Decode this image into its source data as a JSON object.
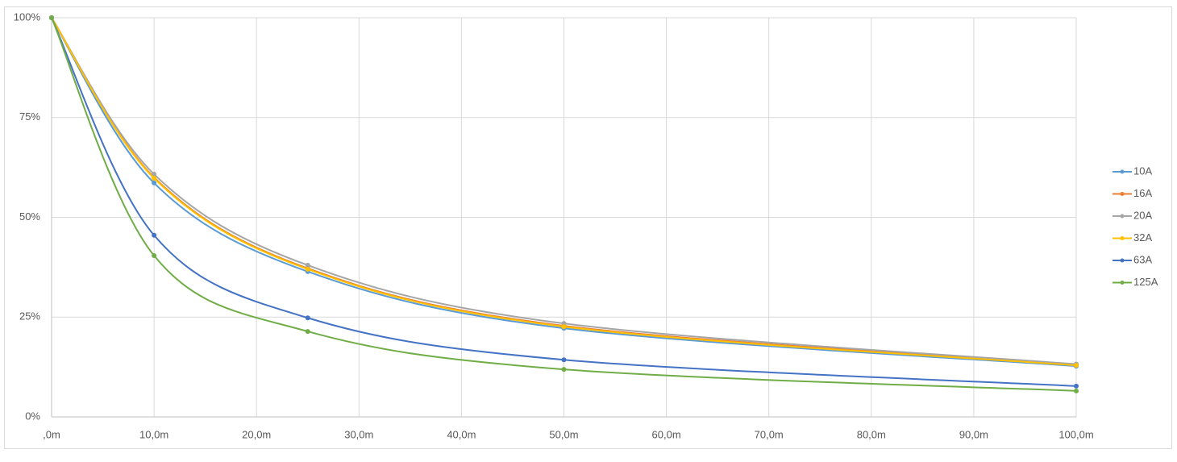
{
  "chart_data": {
    "type": "line",
    "smooth": true,
    "grid": true,
    "legend": "right",
    "x": [
      0,
      10,
      25,
      50,
      100
    ],
    "xlim": [
      0,
      100
    ],
    "xticks": [
      {
        "value": 0,
        "label": ",0m"
      },
      {
        "value": 10,
        "label": "10,0m"
      },
      {
        "value": 20,
        "label": "20,0m"
      },
      {
        "value": 30,
        "label": "30,0m"
      },
      {
        "value": 40,
        "label": "40,0m"
      },
      {
        "value": 50,
        "label": "50,0m"
      },
      {
        "value": 60,
        "label": "60,0m"
      },
      {
        "value": 70,
        "label": "70,0m"
      },
      {
        "value": 80,
        "label": "80,0m"
      },
      {
        "value": 90,
        "label": "90,0m"
      },
      {
        "value": 100,
        "label": "100,0m"
      }
    ],
    "ylim": [
      0,
      100
    ],
    "yticks": [
      {
        "value": 0,
        "label": "0%"
      },
      {
        "value": 25,
        "label": "25%"
      },
      {
        "value": 50,
        "label": "50%"
      },
      {
        "value": 75,
        "label": "75%"
      },
      {
        "value": 100,
        "label": "100%"
      }
    ],
    "series": [
      {
        "name": "10A",
        "color": "#5b9bd5",
        "values": [
          100,
          58.6,
          36.4,
          22.2,
          12.7
        ]
      },
      {
        "name": "16A",
        "color": "#ed7d31",
        "values": [
          100,
          60.0,
          37.2,
          22.8,
          13.1
        ]
      },
      {
        "name": "20A",
        "color": "#a5a5a5",
        "values": [
          100,
          60.8,
          38.0,
          23.4,
          13.2
        ]
      },
      {
        "name": "32A",
        "color": "#ffc000",
        "values": [
          100,
          59.8,
          37.0,
          22.6,
          12.9
        ]
      },
      {
        "name": "63A",
        "color": "#4472c4",
        "values": [
          100,
          45.5,
          24.8,
          14.3,
          7.7
        ]
      },
      {
        "name": "125A",
        "color": "#70ad47",
        "values": [
          100,
          40.4,
          21.4,
          11.9,
          6.5
        ]
      }
    ]
  }
}
